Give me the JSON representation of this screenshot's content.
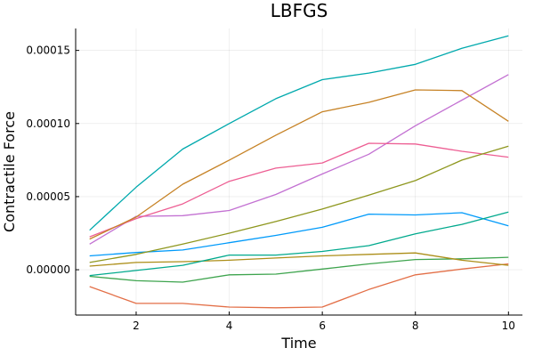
{
  "chart_data": {
    "type": "line",
    "title": "LBFGS",
    "xlabel": "Time",
    "ylabel": "Contractile Force",
    "xlim": [
      0.7,
      10.3
    ],
    "ylim": [
      -3.1e-05,
      0.000165
    ],
    "xticks": [
      2,
      4,
      6,
      8,
      10
    ],
    "xtick_labels": [
      "2",
      "4",
      "6",
      "8",
      "10"
    ],
    "yticks": [
      0,
      5e-05,
      0.0001,
      0.00015
    ],
    "ytick_labels": [
      "0.00000",
      "0.00005",
      "0.00010",
      "0.00015"
    ],
    "grid": true,
    "legend": "none",
    "x": [
      1,
      2,
      3,
      4,
      5,
      6,
      7,
      8,
      9,
      10
    ],
    "series": [
      {
        "color": "#009AFA",
        "values": [
          9.5e-06,
          1.18e-05,
          1.35e-05,
          1.85e-05,
          2.35e-05,
          2.9e-05,
          3.8e-05,
          3.75e-05,
          3.9e-05,
          3e-05
        ]
      },
      {
        "color": "#E36F47",
        "values": [
          -1.15e-05,
          -2.3e-05,
          -2.3e-05,
          -2.55e-05,
          -2.6e-05,
          -2.55e-05,
          -1.35e-05,
          -3.5e-06,
          5e-07,
          4e-06
        ]
      },
      {
        "color": "#3EA44E",
        "values": [
          -4.5e-06,
          -7.5e-06,
          -8.5e-06,
          -3.5e-06,
          -3e-06,
          5e-07,
          4e-06,
          7e-06,
          7.5e-06,
          8.5e-06
        ]
      },
      {
        "color": "#C371D2",
        "values": [
          1.75e-05,
          3.65e-05,
          3.7e-05,
          4.05e-05,
          5.15e-05,
          6.55e-05,
          7.9e-05,
          9.85e-05,
          0.000116,
          0.0001335
        ]
      },
      {
        "color": "#AC8E18",
        "values": [
          2.5e-06,
          5e-06,
          5.5e-06,
          6.5e-06,
          8e-06,
          9.5e-06,
          1.05e-05,
          1.15e-05,
          6.5e-06,
          3e-06
        ]
      },
      {
        "color": "#00A9AD",
        "values": [
          2.7e-05,
          5.65e-05,
          8.25e-05,
          0.0001,
          0.000117,
          0.00013,
          0.0001345,
          0.0001405,
          0.0001515,
          0.00016
        ]
      },
      {
        "color": "#ED5E93",
        "values": [
          2.25e-05,
          3.5e-05,
          4.5e-05,
          6.05e-05,
          6.95e-05,
          7.3e-05,
          8.65e-05,
          8.6e-05,
          8.1e-05,
          7.7e-05
        ]
      },
      {
        "color": "#C68225",
        "values": [
          2.1e-05,
          3.6e-05,
          5.85e-05,
          7.5e-05,
          9.2e-05,
          0.000108,
          0.0001145,
          0.000123,
          0.0001225,
          0.0001015
        ]
      },
      {
        "color": "#00A98D",
        "values": [
          -4e-06,
          -5e-07,
          3e-06,
          1e-05,
          1e-05,
          1.25e-05,
          1.65e-05,
          2.45e-05,
          3.1e-05,
          3.95e-05
        ]
      },
      {
        "color": "#8E971E",
        "values": [
          5e-06,
          1.05e-05,
          1.75e-05,
          2.5e-05,
          3.3e-05,
          4.15e-05,
          5.1e-05,
          6.1e-05,
          7.5e-05,
          8.45e-05
        ]
      }
    ]
  }
}
